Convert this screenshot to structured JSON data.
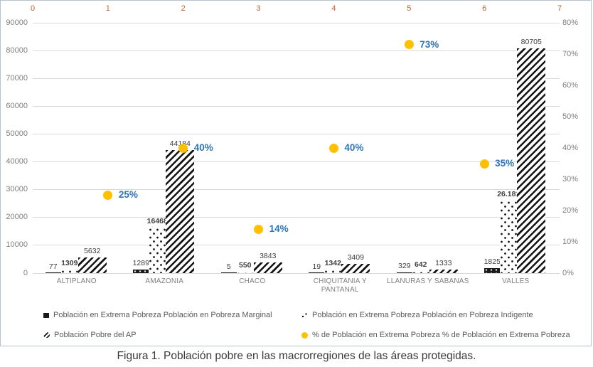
{
  "caption": {
    "text": "Figura 1. Población pobre en las macrorregiones de las áreas protegidas."
  },
  "legend": {
    "items": [
      {
        "marker": "black-square",
        "label": "Población en Extrema Pobreza Población en Pobreza Marginal"
      },
      {
        "marker": "dotted-square",
        "label": "Población en Extrema Pobreza Población en Pobreza Indigente"
      },
      {
        "marker": "hatched-square",
        "label": "Población Pobre del AP"
      },
      {
        "marker": "yellow-dot",
        "label": "% de Población en Extrema Pobreza % de Población en Extrema Pobreza"
      }
    ]
  },
  "colors": {
    "marker_dot": "#FFC000",
    "percentage_label": "#2E75B6",
    "top_axis_text": "#C0622C",
    "grid": "#D9D9D9",
    "axis_text": "#7F7F7F",
    "data_label": "#404040",
    "legend_text": "#595959",
    "bar_black": "#1A1A1A",
    "figure_border": "#B6C2CD"
  },
  "chart_data": {
    "type": "bar",
    "subtype": "clustered patterned bars with percentage scatter on secondary axes",
    "grid": "horizontal",
    "legend_position": "bottom",
    "categories": [
      "ALTIPLANO",
      "AMAZONIA",
      "CHACO",
      "CHIQUITANIA Y PANTANAL",
      "LLANURAS Y SABANAS",
      "VALLES"
    ],
    "series": [
      {
        "id": "pobreza-marginal",
        "name": "Población en Extrema Pobreza Población en Pobreza Marginal",
        "pattern": "solid-black",
        "values": [
          77,
          1289,
          5,
          19,
          329,
          1825
        ],
        "labels": [
          "77",
          "1289",
          "5",
          "19",
          "329",
          "1825"
        ],
        "bold_labels": false
      },
      {
        "id": "pobreza-indigente",
        "name": "Población en Extrema Pobreza Población en Pobreza Indigente",
        "pattern": "dotted",
        "values": [
          1309,
          16468,
          550,
          1342,
          642,
          26181
        ],
        "labels": [
          "1309",
          "16468",
          "550",
          "1342",
          "642",
          "26.181"
        ],
        "bold_labels": true
      },
      {
        "id": "poblacion-pobre-ap",
        "name": "Población Pobre del AP",
        "pattern": "diagonal-hatch",
        "values": [
          5632,
          44184,
          3843,
          3409,
          1333,
          80705
        ],
        "labels": [
          "5632",
          "44184",
          "3843",
          "3409",
          "1333",
          "80705"
        ],
        "bold_labels": false
      }
    ],
    "scatter_series": {
      "name": "% de Población en Extrema Pobreza % de Población en Extrema Pobreza",
      "axis": "secondary",
      "x": [
        1,
        2,
        3,
        4,
        5,
        6
      ],
      "values_pct": [
        25,
        40,
        14,
        40,
        73,
        35
      ],
      "labels": [
        "25%",
        "40%",
        "14%",
        "40%",
        "73%",
        "35%"
      ]
    },
    "left_axis": {
      "min": 0,
      "max": 90000,
      "step": 10000,
      "ticks": [
        "0",
        "10000",
        "20000",
        "30000",
        "40000",
        "50000",
        "60000",
        "70000",
        "80000",
        "90000"
      ]
    },
    "right_axis": {
      "min": 0,
      "max": 80,
      "step": 10,
      "ticks": [
        "0%",
        "10%",
        "20%",
        "30%",
        "40%",
        "50%",
        "60%",
        "70%",
        "80%"
      ]
    },
    "top_axis": {
      "min": 0,
      "max": 7,
      "step": 1,
      "ticks": [
        "0",
        "1",
        "2",
        "3",
        "4",
        "5",
        "6",
        "7"
      ]
    }
  }
}
